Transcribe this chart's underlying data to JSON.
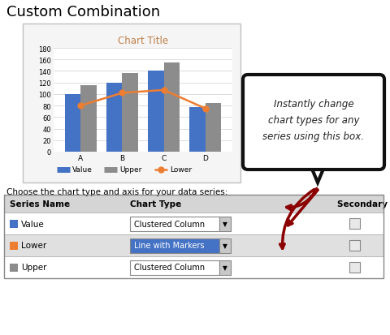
{
  "title": "Custom Combination",
  "chart_title": "Chart Title",
  "categories": [
    "A",
    "B",
    "C",
    "D"
  ],
  "value_data": [
    100,
    120,
    140,
    78
  ],
  "upper_data": [
    115,
    136,
    155,
    85
  ],
  "lower_data": [
    80,
    102,
    107,
    75
  ],
  "value_color": "#4472C4",
  "upper_color": "#8c8c8c",
  "lower_color": "#ED7D31",
  "y_ticks": [
    0,
    20,
    40,
    60,
    80,
    100,
    120,
    140,
    160,
    180
  ],
  "callout_text": "Instantly change\nchart types for any\nseries using this box.",
  "table_headers": [
    "Series Name",
    "Chart Type",
    "Secondary Axis"
  ],
  "series_rows": [
    {
      "name": "Value",
      "color": "#4472C4",
      "chart_type": "Clustered Column",
      "highlight": false
    },
    {
      "name": "Lower",
      "color": "#ED7D31",
      "chart_type": "Line with Markers",
      "highlight": true
    },
    {
      "name": "Upper",
      "color": "#8c8c8c",
      "chart_type": "Clustered Column",
      "highlight": false
    }
  ],
  "choose_text": "Choose the chart type and axis for your data series:",
  "bg_color": "#ffffff"
}
